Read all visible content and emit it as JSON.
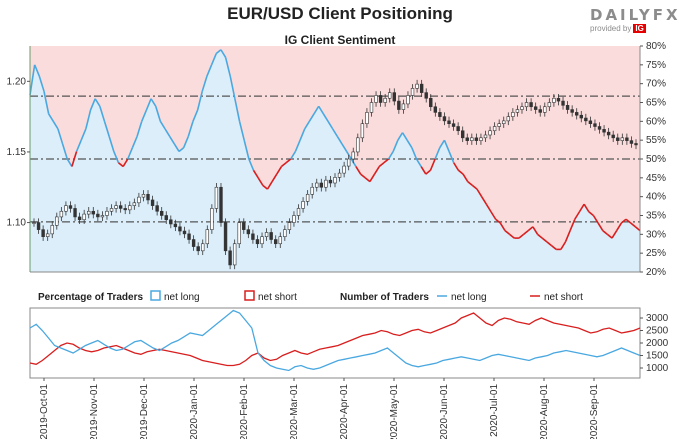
{
  "title": "EUR/USD Client Positioning",
  "subtitle": "IG Client Sentiment",
  "logo": {
    "text": "DAILYFX",
    "sub": "provided by",
    "badge": "IG"
  },
  "colors": {
    "long": "#4aa8e0",
    "short": "#d81e1e",
    "long_fill": "#dbeefa",
    "short_fill": "#fbdcdc",
    "candle": "#333333"
  },
  "chart_data": [
    {
      "type": "line",
      "name": "main-price-and-sentiment",
      "left_axis": {
        "ticks": [
          "1.20",
          "1.15",
          "1.10"
        ],
        "values": [
          1.2,
          1.15,
          1.1
        ],
        "range": [
          1.065,
          1.225
        ]
      },
      "right_axis": {
        "ticks": [
          "80%",
          "75%",
          "70%",
          "65%",
          "60%",
          "55%",
          "50%",
          "45%",
          "40%",
          "35%",
          "30%",
          "25%",
          "20%"
        ],
        "range": [
          20,
          80
        ]
      },
      "reference_lines": [
        50,
        66.7,
        33.3
      ],
      "net_long_pct": [
        67,
        75,
        72,
        68,
        62,
        60,
        58,
        54,
        50,
        48,
        52,
        55,
        58,
        63,
        66,
        64,
        60,
        56,
        52,
        49,
        48,
        50,
        53,
        56,
        60,
        63,
        66,
        64,
        60,
        58,
        56,
        54,
        52,
        53,
        56,
        60,
        63,
        68,
        72,
        75,
        78,
        79,
        77,
        72,
        66,
        60,
        55,
        50,
        47,
        45,
        43,
        42,
        44,
        46,
        48,
        49,
        50,
        52,
        55,
        58,
        60,
        62,
        64,
        62,
        60,
        58,
        56,
        54,
        52,
        50,
        48,
        46,
        45,
        44,
        46,
        48,
        49,
        50,
        52,
        55,
        57,
        55,
        53,
        50,
        48,
        46,
        47,
        50,
        53,
        55,
        52,
        49,
        47,
        46,
        44,
        43,
        42,
        40,
        38,
        36,
        34,
        33,
        31,
        30,
        29,
        29,
        30,
        31,
        32,
        30,
        29,
        28,
        27,
        26,
        26,
        28,
        31,
        34,
        36,
        38,
        36,
        35,
        33,
        31,
        30,
        29,
        31,
        33,
        34,
        33,
        32,
        31
      ],
      "price": [
        1.1,
        1.095,
        1.09,
        1.092,
        1.098,
        1.104,
        1.108,
        1.112,
        1.11,
        1.104,
        1.102,
        1.106,
        1.108,
        1.106,
        1.104,
        1.105,
        1.108,
        1.11,
        1.112,
        1.11,
        1.109,
        1.112,
        1.114,
        1.118,
        1.12,
        1.116,
        1.112,
        1.108,
        1.105,
        1.102,
        1.099,
        1.097,
        1.094,
        1.092,
        1.088,
        1.083,
        1.08,
        1.085,
        1.095,
        1.11,
        1.125,
        1.1,
        1.08,
        1.07,
        1.085,
        1.1,
        1.095,
        1.092,
        1.088,
        1.085,
        1.09,
        1.093,
        1.088,
        1.085,
        1.09,
        1.095,
        1.1,
        1.105,
        1.11,
        1.115,
        1.12,
        1.125,
        1.128,
        1.125,
        1.13,
        1.128,
        1.132,
        1.135,
        1.14,
        1.145,
        1.15,
        1.16,
        1.17,
        1.178,
        1.185,
        1.19,
        1.185,
        1.188,
        1.192,
        1.186,
        1.18,
        1.184,
        1.19,
        1.195,
        1.198,
        1.192,
        1.188,
        1.182,
        1.178,
        1.175,
        1.172,
        1.17,
        1.168,
        1.165,
        1.16,
        1.158,
        1.16,
        1.158,
        1.16,
        1.162,
        1.165,
        1.168,
        1.17,
        1.172,
        1.175,
        1.178,
        1.18,
        1.182,
        1.185,
        1.182,
        1.18,
        1.178,
        1.182,
        1.185,
        1.188,
        1.186,
        1.183,
        1.18,
        1.178,
        1.176,
        1.174,
        1.172,
        1.17,
        1.168,
        1.166,
        1.164,
        1.162,
        1.16,
        1.158,
        1.16,
        1.158,
        1.156,
        1.155
      ]
    },
    {
      "type": "line",
      "name": "number-of-traders",
      "right_axis": {
        "ticks": [
          "3000",
          "2500",
          "2000",
          "1500",
          "1000"
        ],
        "range": [
          600,
          3400
        ]
      },
      "x_ticks": [
        "2019-Oct-01",
        "2019-Nov-01",
        "2019-Dec-01",
        "2020-Jan-01",
        "2020-Feb-01",
        "2020-Mar-01",
        "2020-Apr-01",
        "2020-May-01",
        "2020-Jun-01",
        "2020-Jul-01",
        "2020-Aug-01",
        "2020-Sep-01"
      ],
      "net_long": [
        2600,
        2750,
        2500,
        2200,
        1900,
        1800,
        1700,
        1600,
        1750,
        1900,
        2000,
        2100,
        1950,
        1800,
        1700,
        1750,
        1900,
        2050,
        2100,
        1950,
        1800,
        1700,
        1850,
        2000,
        2100,
        2250,
        2400,
        2350,
        2300,
        2500,
        2700,
        2900,
        3100,
        3300,
        3200,
        2900,
        2600,
        1600,
        1300,
        1100,
        1000,
        950,
        900,
        1050,
        1100,
        1000,
        950,
        1000,
        1100,
        1200,
        1300,
        1350,
        1400,
        1450,
        1500,
        1550,
        1600,
        1700,
        1800,
        1600,
        1400,
        1200,
        1100,
        1050,
        1100,
        1150,
        1200,
        1300,
        1350,
        1400,
        1450,
        1400,
        1350,
        1300,
        1400,
        1500,
        1550,
        1500,
        1450,
        1400,
        1350,
        1300,
        1400,
        1450,
        1500,
        1600,
        1650,
        1700,
        1650,
        1600,
        1550,
        1500,
        1450,
        1500,
        1600,
        1700,
        1800,
        1700,
        1600,
        1500
      ],
      "net_short": [
        1200,
        1150,
        1300,
        1500,
        1700,
        1900,
        2000,
        1950,
        1800,
        1700,
        1650,
        1700,
        1800,
        1850,
        1900,
        1800,
        1700,
        1600,
        1550,
        1650,
        1700,
        1750,
        1700,
        1650,
        1600,
        1550,
        1500,
        1400,
        1300,
        1250,
        1200,
        1150,
        1100,
        1100,
        1150,
        1300,
        1500,
        1600,
        1400,
        1300,
        1350,
        1500,
        1600,
        1700,
        1600,
        1550,
        1650,
        1750,
        1800,
        1850,
        1900,
        2000,
        2100,
        2200,
        2300,
        2350,
        2400,
        2500,
        2450,
        2350,
        2300,
        2400,
        2500,
        2550,
        2450,
        2400,
        2500,
        2600,
        2700,
        2800,
        3000,
        3100,
        3200,
        3000,
        2800,
        2700,
        2900,
        3000,
        2950,
        2850,
        2800,
        2750,
        2900,
        3000,
        2900,
        2800,
        2750,
        2700,
        2650,
        2600,
        2500,
        2400,
        2450,
        2550,
        2600,
        2500,
        2400,
        2450,
        2500,
        2600
      ]
    }
  ],
  "legend": {
    "pct_title": "Percentage of Traders",
    "num_title": "Number of Traders",
    "long_label": "net long",
    "short_label": "net short"
  }
}
